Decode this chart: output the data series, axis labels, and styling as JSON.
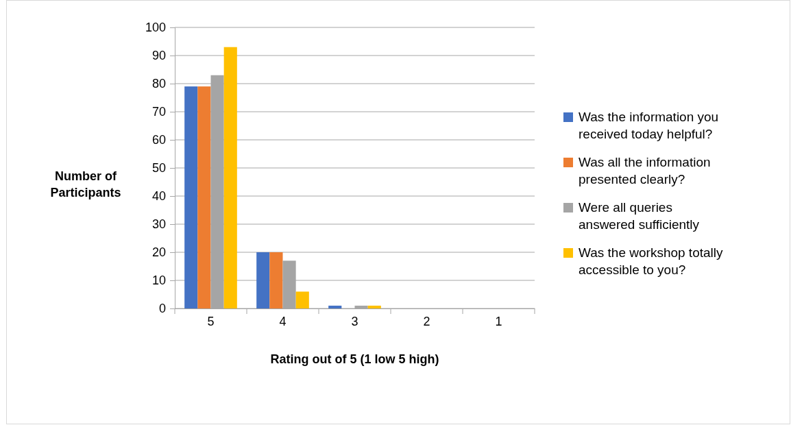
{
  "chart_data": {
    "type": "bar",
    "xlabel": "Rating out of 5 (1 low 5 high)",
    "ylabel": "Number of Participants",
    "categories": [
      "5",
      "4",
      "3",
      "2",
      "1"
    ],
    "series": [
      {
        "name": "Was the information you received today helpful?",
        "color": "#4472c4",
        "values": [
          79,
          20,
          1,
          0,
          0
        ]
      },
      {
        "name": "Was all the information presented clearly?",
        "color": "#ed7d31",
        "values": [
          79,
          20,
          0,
          0,
          0
        ]
      },
      {
        "name": "Were all queries answered sufficiently",
        "color": "#a5a5a5",
        "values": [
          83,
          17,
          1,
          0,
          0
        ]
      },
      {
        "name": "Was the workshop totally accessible to you?",
        "color": "#ffc000",
        "values": [
          93,
          6,
          1,
          0,
          0
        ]
      }
    ],
    "ylim": [
      0,
      100
    ],
    "yticks": [
      0,
      10,
      20,
      30,
      40,
      50,
      60,
      70,
      80,
      90,
      100
    ],
    "grid": "y",
    "legend": "right"
  }
}
